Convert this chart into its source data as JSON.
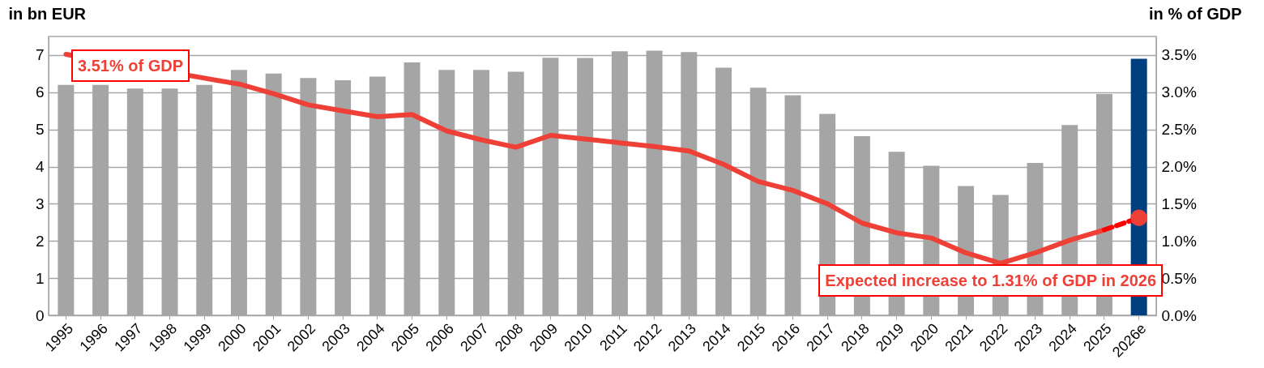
{
  "chart_data": {
    "type": "bar",
    "ylabel": "in bn EUR",
    "y2label": "in % of GDP",
    "categories": [
      "1995",
      "1996",
      "1997",
      "1998",
      "1999",
      "2000",
      "2001",
      "2002",
      "2003",
      "2004",
      "2005",
      "2006",
      "2007",
      "2008",
      "2009",
      "2010",
      "2011",
      "2012",
      "2013",
      "2014",
      "2015",
      "2016",
      "2017",
      "2018",
      "2019",
      "2020",
      "2021",
      "2022",
      "2023",
      "2024",
      "2025",
      "2026e"
    ],
    "series": [
      {
        "colors": [
          "#a5a5a5",
          "#a5a5a5",
          "#a5a5a5",
          "#a5a5a5",
          "#a5a5a5",
          "#a5a5a5",
          "#a5a5a5",
          "#a5a5a5",
          "#a5a5a5",
          "#a5a5a5",
          "#a5a5a5",
          "#a5a5a5",
          "#a5a5a5",
          "#a5a5a5",
          "#a5a5a5",
          "#a5a5a5",
          "#a5a5a5",
          "#a5a5a5",
          "#a5a5a5",
          "#a5a5a5",
          "#a5a5a5",
          "#a5a5a5",
          "#a5a5a5",
          "#a5a5a5",
          "#a5a5a5",
          "#a5a5a5",
          "#a5a5a5",
          "#a5a5a5",
          "#a5a5a5",
          "#a5a5a5",
          "#a5a5a5",
          "#003f7f"
        ],
        "values": [
          6.2,
          6.2,
          6.1,
          6.1,
          6.2,
          6.6,
          6.5,
          6.38,
          6.32,
          6.42,
          6.8,
          6.6,
          6.6,
          6.55,
          6.93,
          6.92,
          7.1,
          7.12,
          7.08,
          6.66,
          6.12,
          5.92,
          5.42,
          4.82,
          4.4,
          4.02,
          3.48,
          3.24,
          4.1,
          5.12,
          5.95,
          6.9
        ]
      },
      {
        "type": "line",
        "axis": "y2",
        "color": "#ee4036",
        "line_style": "solid",
        "values": [
          3.51,
          null,
          null,
          null,
          null,
          3.11,
          2.98,
          2.83,
          2.75,
          2.67,
          2.7,
          2.48,
          2.36,
          2.26,
          2.42,
          2.37,
          2.32,
          2.27,
          2.21,
          2.03,
          1.8,
          1.68,
          1.5,
          1.24,
          1.11,
          1.04,
          0.84,
          0.7,
          0.84,
          1.01,
          1.15,
          null
        ]
      },
      {
        "type": "line",
        "axis": "y2",
        "color": "#ff0000",
        "line_style": "dashed",
        "values": [
          null,
          null,
          null,
          null,
          null,
          null,
          null,
          null,
          null,
          null,
          null,
          null,
          null,
          null,
          null,
          null,
          null,
          null,
          null,
          null,
          null,
          null,
          null,
          null,
          null,
          null,
          null,
          null,
          null,
          null,
          1.15,
          1.31
        ]
      },
      {
        "type": "scatter",
        "axis": "y2",
        "color": "#ee4036",
        "marker": "circle",
        "values": [
          null,
          null,
          null,
          null,
          null,
          null,
          null,
          null,
          null,
          null,
          null,
          null,
          null,
          null,
          null,
          null,
          null,
          null,
          null,
          null,
          null,
          null,
          null,
          null,
          null,
          null,
          null,
          null,
          null,
          null,
          null,
          1.31
        ]
      }
    ],
    "ylim": [
      0,
      7.5
    ],
    "yticks": [
      0,
      1,
      2,
      3,
      4,
      5,
      6,
      7
    ],
    "y2lim": [
      0,
      3.75
    ],
    "y2ticks": [
      {
        "value": 0,
        "label": "0.0%"
      },
      {
        "value": 0.5,
        "label": "0.5%"
      },
      {
        "value": 1,
        "label": "1.0%"
      },
      {
        "value": 1.5,
        "label": "1.5%"
      },
      {
        "value": 2,
        "label": "2.0%"
      },
      {
        "value": 2.5,
        "label": "2.5%"
      },
      {
        "value": 3,
        "label": "3.0%"
      },
      {
        "value": 3.5,
        "label": "3.5%"
      }
    ],
    "grid": "y",
    "annotations": [
      "3.51% of GDP",
      "Expected increase to 1.31% of GDP in 2026"
    ]
  }
}
